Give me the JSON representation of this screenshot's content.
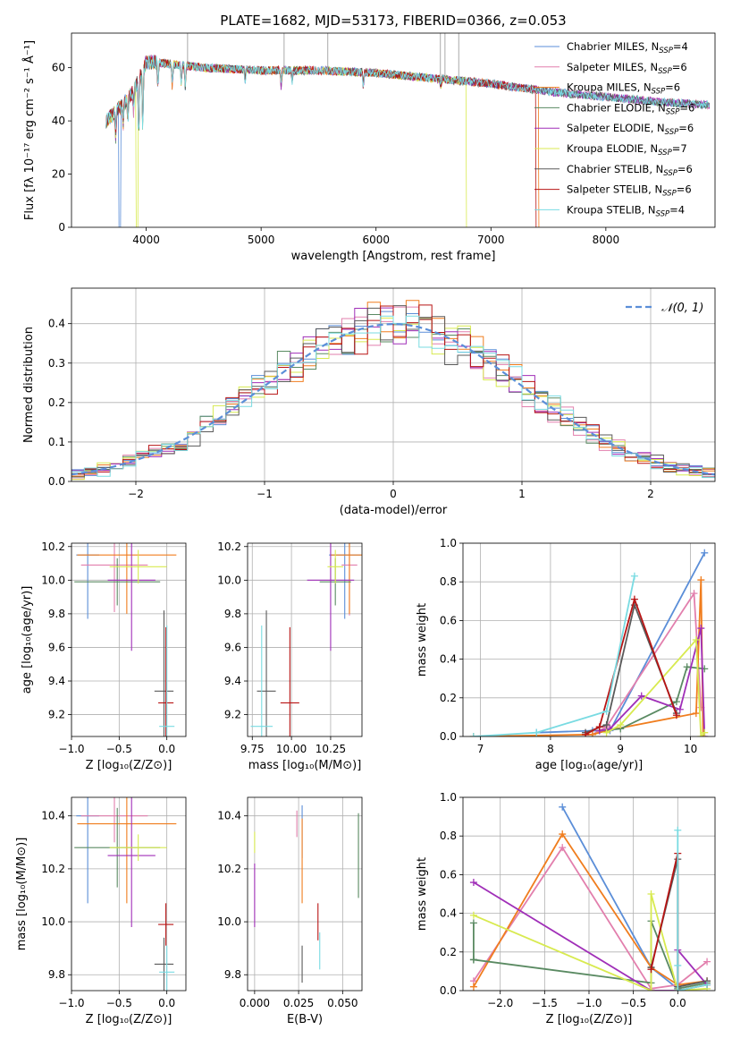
{
  "figure_title": "PLATE=1682, MJD=53173, FIBERID=0366, z=0.053",
  "colors": {
    "Chabrier MILES": "#5b8ed8",
    "Salpeter MILES": "#e27fad",
    "Kroupa MILES": "#f07d1e",
    "Chabrier ELODIE": "#5a8a62",
    "Salpeter ELODIE": "#a02fb8",
    "Kroupa ELODIE": "#d8ea50",
    "Chabrier STELIB": "#5a5a5a",
    "Salpeter STELIB": "#b81414",
    "Kroupa STELIB": "#79dbe2",
    "normal_curve": "#5b8ed8",
    "grid": "#b0b0b0",
    "spectrum_gray": "#aaaaaa"
  },
  "chart_data": [
    {
      "id": "spectrum",
      "type": "line",
      "title": "PLATE=1682, MJD=53173, FIBERID=0366, z=0.053",
      "xlabel": "wavelength [Angstrom, rest frame]",
      "ylabel": "Flux [fλ 10⁻¹⁷ erg cm⁻² s⁻¹ Å⁻¹]",
      "xlim": [
        3350,
        8950
      ],
      "ylim": [
        0,
        73
      ],
      "xticks": [
        "4000",
        "5000",
        "6000",
        "7000",
        "8000"
      ],
      "yticks": [
        "0",
        "20",
        "40",
        "60"
      ],
      "grid": false,
      "legend_position": "top-right",
      "legend": [
        {
          "label": "Chabrier MILES, N",
          "sub": "SSP",
          "suffix": "=4"
        },
        {
          "label": "Salpeter MILES, N",
          "sub": "SSP",
          "suffix": "=6"
        },
        {
          "label": "Kroupa MILES, N",
          "sub": "SSP",
          "suffix": "=6"
        },
        {
          "label": "Chabrier ELODIE, N",
          "sub": "SSP",
          "suffix": "=6"
        },
        {
          "label": "Salpeter ELODIE, N",
          "sub": "SSP",
          "suffix": "=6"
        },
        {
          "label": "Kroupa ELODIE, N",
          "sub": "SSP",
          "suffix": "=7"
        },
        {
          "label": "Chabrier STELIB, N",
          "sub": "SSP",
          "suffix": "=6"
        },
        {
          "label": "Salpeter STELIB, N",
          "sub": "SSP",
          "suffix": "=6"
        },
        {
          "label": "Kroupa STELIB, N",
          "sub": "SSP",
          "suffix": "=4"
        }
      ],
      "continuum": [
        [
          3650,
          40
        ],
        [
          3700,
          42
        ],
        [
          3800,
          46
        ],
        [
          3900,
          52
        ],
        [
          4000,
          62
        ],
        [
          4100,
          62
        ],
        [
          4300,
          61
        ],
        [
          4500,
          60
        ],
        [
          5000,
          59
        ],
        [
          5500,
          59
        ],
        [
          6000,
          58
        ],
        [
          6500,
          56
        ],
        [
          7000,
          54
        ],
        [
          7500,
          51
        ],
        [
          8000,
          49
        ],
        [
          8500,
          47
        ],
        [
          8900,
          46
        ]
      ],
      "absorption_features": [
        [
          3735,
          34
        ],
        [
          3800,
          39
        ],
        [
          3840,
          41
        ],
        [
          3890,
          44
        ],
        [
          3935,
          34
        ],
        [
          3970,
          36
        ],
        [
          4102,
          52
        ],
        [
          4227,
          53
        ],
        [
          4305,
          54
        ],
        [
          4340,
          53
        ],
        [
          4861,
          55
        ],
        [
          5175,
          53
        ],
        [
          5270,
          55
        ],
        [
          5890,
          53
        ],
        [
          6563,
          53
        ]
      ],
      "emission_spikes": [
        4360,
        5200,
        5580,
        6560,
        6600,
        6720
      ],
      "dropouts": [
        [
          3770,
          "#5b8ed8"
        ],
        [
          3920,
          "#d8ea50"
        ],
        [
          6790,
          "#d8ea50"
        ],
        [
          7420,
          "#f07d1e"
        ],
        [
          7400,
          "#b81414"
        ]
      ]
    },
    {
      "id": "residuals",
      "type": "histogram",
      "xlabel": "(data-model)/error",
      "ylabel": "Normed distribution",
      "xlim": [
        -2.5,
        2.5
      ],
      "ylim": [
        0,
        0.49
      ],
      "xticks": [
        "−2",
        "−1",
        "0",
        "1",
        "2"
      ],
      "yticks": [
        "0.0",
        "0.1",
        "0.2",
        "0.3",
        "0.4"
      ],
      "grid": true,
      "legend_position": "top-right",
      "legend_label": "𝒩(0, 1)"
    },
    {
      "id": "age-vs-Z",
      "type": "scatter",
      "xlabel": "Z [log₁₀(Z/Z⊙)]",
      "ylabel": "age  [log₁₀(age/yr)]",
      "xlim": [
        -1.0,
        0.2
      ],
      "ylim": [
        9.07,
        10.22
      ],
      "xticks": [
        "−1.0",
        "−0.5",
        "0.0"
      ],
      "yticks": [
        "9.2",
        "9.4",
        "9.6",
        "9.8",
        "10.0",
        "10.2"
      ],
      "grid": true,
      "points": [
        {
          "model": "Chabrier MILES",
          "x": -0.83,
          "xerr": 0.12,
          "y": 10.15,
          "yerr": 0.38
        },
        {
          "model": "Salpeter MILES",
          "x": -0.55,
          "xerr": 0.35,
          "y": 10.09,
          "yerr": 0.28
        },
        {
          "model": "Kroupa MILES",
          "x": -0.42,
          "xerr": 0.52,
          "y": 10.15,
          "yerr": 0.35
        },
        {
          "model": "Chabrier ELODIE",
          "x": -0.52,
          "xerr": 0.45,
          "y": 9.99,
          "yerr": 0.14
        },
        {
          "model": "Salpeter ELODIE",
          "x": -0.37,
          "xerr": 0.25,
          "y": 10.0,
          "yerr": 0.42
        },
        {
          "model": "Kroupa ELODIE",
          "x": -0.3,
          "xerr": 0.3,
          "y": 10.08,
          "yerr": 0.1
        },
        {
          "model": "Chabrier STELIB",
          "x": -0.03,
          "xerr": 0.1,
          "y": 9.34,
          "yerr": 0.48
        },
        {
          "model": "Salpeter STELIB",
          "x": -0.01,
          "xerr": 0.08,
          "y": 9.27,
          "yerr": 0.45
        },
        {
          "model": "Kroupa STELIB",
          "x": 0.0,
          "xerr": 0.08,
          "y": 9.13,
          "yerr": 0.6
        }
      ]
    },
    {
      "id": "age-vs-mass",
      "type": "scatter",
      "xlabel": "mass [log₁₀(M/M⊙)]",
      "ylabel": "",
      "xlim": [
        9.72,
        10.45
      ],
      "ylim": [
        9.07,
        10.22
      ],
      "xticks": [
        "9.75",
        "10.00",
        "10.25"
      ],
      "yticks": [
        "9.2",
        "9.4",
        "9.6",
        "9.8",
        "10.0",
        "10.2"
      ],
      "grid": true,
      "points": [
        {
          "model": "Chabrier MILES",
          "x": 10.34,
          "xerr": 0.1,
          "y": 10.15,
          "yerr": 0.38
        },
        {
          "model": "Salpeter MILES",
          "x": 10.37,
          "xerr": 0.05,
          "y": 10.09,
          "yerr": 0.3
        },
        {
          "model": "Kroupa MILES",
          "x": 10.37,
          "xerr": 0.12,
          "y": 10.15,
          "yerr": 0.35
        },
        {
          "model": "Chabrier ELODIE",
          "x": 10.28,
          "xerr": 0.1,
          "y": 9.99,
          "yerr": 0.14
        },
        {
          "model": "Salpeter ELODIE",
          "x": 10.25,
          "xerr": 0.15,
          "y": 10.0,
          "yerr": 0.42
        },
        {
          "model": "Kroupa ELODIE",
          "x": 10.28,
          "xerr": 0.05,
          "y": 10.08,
          "yerr": 0.1
        },
        {
          "model": "Chabrier STELIB",
          "x": 9.84,
          "xerr": 0.06,
          "y": 9.34,
          "yerr": 0.48
        },
        {
          "model": "Salpeter STELIB",
          "x": 9.99,
          "xerr": 0.06,
          "y": 9.27,
          "yerr": 0.45
        },
        {
          "model": "Kroupa STELIB",
          "x": 9.81,
          "xerr": 0.07,
          "y": 9.13,
          "yerr": 0.6
        }
      ]
    },
    {
      "id": "weight-vs-age",
      "type": "line",
      "xlabel": "age  [log₁₀(age/yr)]",
      "ylabel": "mass weight",
      "xlim": [
        6.75,
        10.35
      ],
      "ylim": [
        0,
        1.0
      ],
      "xticks": [
        "7",
        "8",
        "9",
        "10"
      ],
      "yticks": [
        "0.0",
        "0.2",
        "0.4",
        "0.6",
        "0.8",
        "1.0"
      ],
      "grid": true,
      "series": [
        {
          "model": "Chabrier MILES",
          "x": [
            7.8,
            8.6,
            8.85,
            10.2
          ],
          "y": [
            0.02,
            0.03,
            0.03,
            0.95
          ]
        },
        {
          "model": "Salpeter MILES",
          "x": [
            8.6,
            8.8,
            10.05,
            10.15
          ],
          "y": [
            0.01,
            0.05,
            0.74,
            0.15
          ]
        },
        {
          "model": "Kroupa MILES",
          "x": [
            6.9,
            8.6,
            8.8,
            10.08,
            10.15,
            10.18
          ],
          "y": [
            0.0,
            0.01,
            0.03,
            0.12,
            0.81,
            0.0
          ]
        },
        {
          "model": "Chabrier ELODIE",
          "x": [
            8.7,
            9.0,
            9.8,
            9.95,
            10.2
          ],
          "y": [
            0.03,
            0.04,
            0.18,
            0.36,
            0.35
          ]
        },
        {
          "model": "Salpeter ELODIE",
          "x": [
            8.7,
            8.85,
            9.3,
            9.85,
            10.15,
            10.2
          ],
          "y": [
            0.03,
            0.04,
            0.21,
            0.14,
            0.56,
            0.0
          ]
        },
        {
          "model": "Kroupa ELODIE",
          "x": [
            8.8,
            9.0,
            10.08,
            10.15,
            10.2
          ],
          "y": [
            0.02,
            0.06,
            0.5,
            0.0,
            0.02
          ]
        },
        {
          "model": "Chabrier STELIB",
          "x": [
            8.5,
            8.8,
            9.2,
            9.8
          ],
          "y": [
            0.02,
            0.06,
            0.68,
            0.12
          ]
        },
        {
          "model": "Salpeter STELIB",
          "x": [
            8.5,
            8.7,
            9.2,
            9.8
          ],
          "y": [
            0.01,
            0.05,
            0.71,
            0.11
          ]
        },
        {
          "model": "Kroupa STELIB",
          "x": [
            6.9,
            7.8,
            8.8,
            9.2
          ],
          "y": [
            0.0,
            0.02,
            0.13,
            0.83
          ]
        }
      ]
    },
    {
      "id": "mass-vs-Z",
      "type": "scatter",
      "xlabel": "Z [log₁₀(Z/Z⊙)]",
      "ylabel": "mass [log₁₀(M/M⊙)]",
      "xlim": [
        -1.0,
        0.2
      ],
      "ylim": [
        9.74,
        10.47
      ],
      "xticks": [
        "−1.0",
        "−0.5",
        "0.0"
      ],
      "yticks": [
        "9.8",
        "10.0",
        "10.2",
        "10.4"
      ],
      "grid": true,
      "points": [
        {
          "model": "Chabrier MILES",
          "x": -0.83,
          "xerr": 0.12,
          "y": 10.4,
          "yerr": 0.33
        },
        {
          "model": "Salpeter MILES",
          "x": -0.55,
          "xerr": 0.35,
          "y": 10.4,
          "yerr": 0.1
        },
        {
          "model": "Kroupa MILES",
          "x": -0.42,
          "xerr": 0.52,
          "y": 10.37,
          "yerr": 0.3
        },
        {
          "model": "Chabrier ELODIE",
          "x": -0.52,
          "xerr": 0.45,
          "y": 10.28,
          "yerr": 0.15
        },
        {
          "model": "Salpeter ELODIE",
          "x": -0.37,
          "xerr": 0.25,
          "y": 10.25,
          "yerr": 0.27
        },
        {
          "model": "Kroupa ELODIE",
          "x": -0.3,
          "xerr": 0.3,
          "y": 10.28,
          "yerr": 0.05
        },
        {
          "model": "Chabrier STELIB",
          "x": -0.03,
          "xerr": 0.1,
          "y": 9.84,
          "yerr": 0.1
        },
        {
          "model": "Salpeter STELIB",
          "x": -0.01,
          "xerr": 0.08,
          "y": 9.99,
          "yerr": 0.08
        },
        {
          "model": "Kroupa STELIB",
          "x": 0.0,
          "xerr": 0.08,
          "y": 9.81,
          "yerr": 0.1
        }
      ]
    },
    {
      "id": "mass-vs-ebv",
      "type": "scatter",
      "xlabel": "E(B-V)",
      "ylabel": "",
      "xlim": [
        -0.004,
        0.061
      ],
      "ylim": [
        9.74,
        10.47
      ],
      "xticks": [
        "0.000",
        "0.025",
        "0.050"
      ],
      "yticks": [
        "9.8",
        "10.0",
        "10.2",
        "10.4"
      ],
      "grid": true,
      "points": [
        {
          "model": "Chabrier MILES",
          "x": 0.027,
          "y": 10.34,
          "yerr": 0.1
        },
        {
          "model": "Salpeter MILES",
          "x": 0.024,
          "y": 10.37,
          "yerr": 0.05
        },
        {
          "model": "Kroupa MILES",
          "x": 0.027,
          "y": 10.23,
          "yerr": 0.16
        },
        {
          "model": "Chabrier ELODIE",
          "x": 0.059,
          "y": 10.25,
          "yerr": 0.16
        },
        {
          "model": "Salpeter ELODIE",
          "x": 0.0,
          "y": 10.1,
          "yerr": 0.12
        },
        {
          "model": "Kroupa ELODIE",
          "x": 0.0,
          "y": 10.3,
          "yerr": 0.04
        },
        {
          "model": "Chabrier STELIB",
          "x": 0.027,
          "y": 9.84,
          "yerr": 0.07
        },
        {
          "model": "Salpeter STELIB",
          "x": 0.036,
          "y": 10.0,
          "yerr": 0.07
        },
        {
          "model": "Kroupa STELIB",
          "x": 0.037,
          "y": 9.89,
          "yerr": 0.07
        }
      ]
    },
    {
      "id": "weight-vs-Z",
      "type": "line",
      "xlabel": "Z [log₁₀(Z/Z⊙)]",
      "ylabel": "mass weight",
      "xlim": [
        -2.42,
        0.42
      ],
      "ylim": [
        0,
        1.0
      ],
      "xticks": [
        "−2.0",
        "−1.5",
        "−1.0",
        "−0.5",
        "0.0"
      ],
      "yticks": [
        "0.0",
        "0.2",
        "0.4",
        "0.6",
        "0.8",
        "1.0"
      ],
      "grid": true,
      "series": [
        {
          "model": "Chabrier MILES",
          "x": [
            -1.3,
            -0.3,
            0.0
          ],
          "y": [
            0.95,
            0.12,
            0.01
          ]
        },
        {
          "model": "Salpeter MILES",
          "x": [
            -2.3,
            -1.3,
            -0.3,
            0.0,
            0.33
          ],
          "y": [
            0.05,
            0.74,
            0.01,
            0.03,
            0.15
          ]
        },
        {
          "model": "Kroupa MILES",
          "x": [
            -2.3,
            -1.3,
            -0.3,
            0.0,
            0.33
          ],
          "y": [
            0.02,
            0.81,
            0.12,
            0.03,
            0.05
          ]
        },
        {
          "model": "Chabrier ELODIE",
          "x": [
            -2.3,
            -2.3,
            -2.3,
            -0.3,
            -0.3,
            0.0,
            0.33
          ],
          "y": [
            0.16,
            0.35,
            0.16,
            0.04,
            0.36,
            0.01,
            0.04
          ]
        },
        {
          "model": "Salpeter ELODIE",
          "x": [
            -2.3,
            -0.3,
            0.0,
            0.0,
            0.33
          ],
          "y": [
            0.56,
            0.0,
            0.0,
            0.21,
            0.03
          ]
        },
        {
          "model": "Kroupa ELODIE",
          "x": [
            -2.3,
            -0.3,
            -0.3,
            0.0,
            0.33
          ],
          "y": [
            0.39,
            0.0,
            0.5,
            0.0,
            0.01
          ]
        },
        {
          "model": "Chabrier STELIB",
          "x": [
            -0.3,
            0.0,
            0.0,
            0.33
          ],
          "y": [
            0.12,
            0.68,
            0.02,
            0.05
          ]
        },
        {
          "model": "Salpeter STELIB",
          "x": [
            -0.3,
            0.0,
            0.0,
            0.33
          ],
          "y": [
            0.11,
            0.71,
            0.0,
            0.03
          ]
        },
        {
          "model": "Kroupa STELIB",
          "x": [
            0.0,
            0.0,
            0.0,
            0.33
          ],
          "y": [
            0.83,
            0.13,
            0.0,
            0.03
          ]
        }
      ]
    }
  ]
}
